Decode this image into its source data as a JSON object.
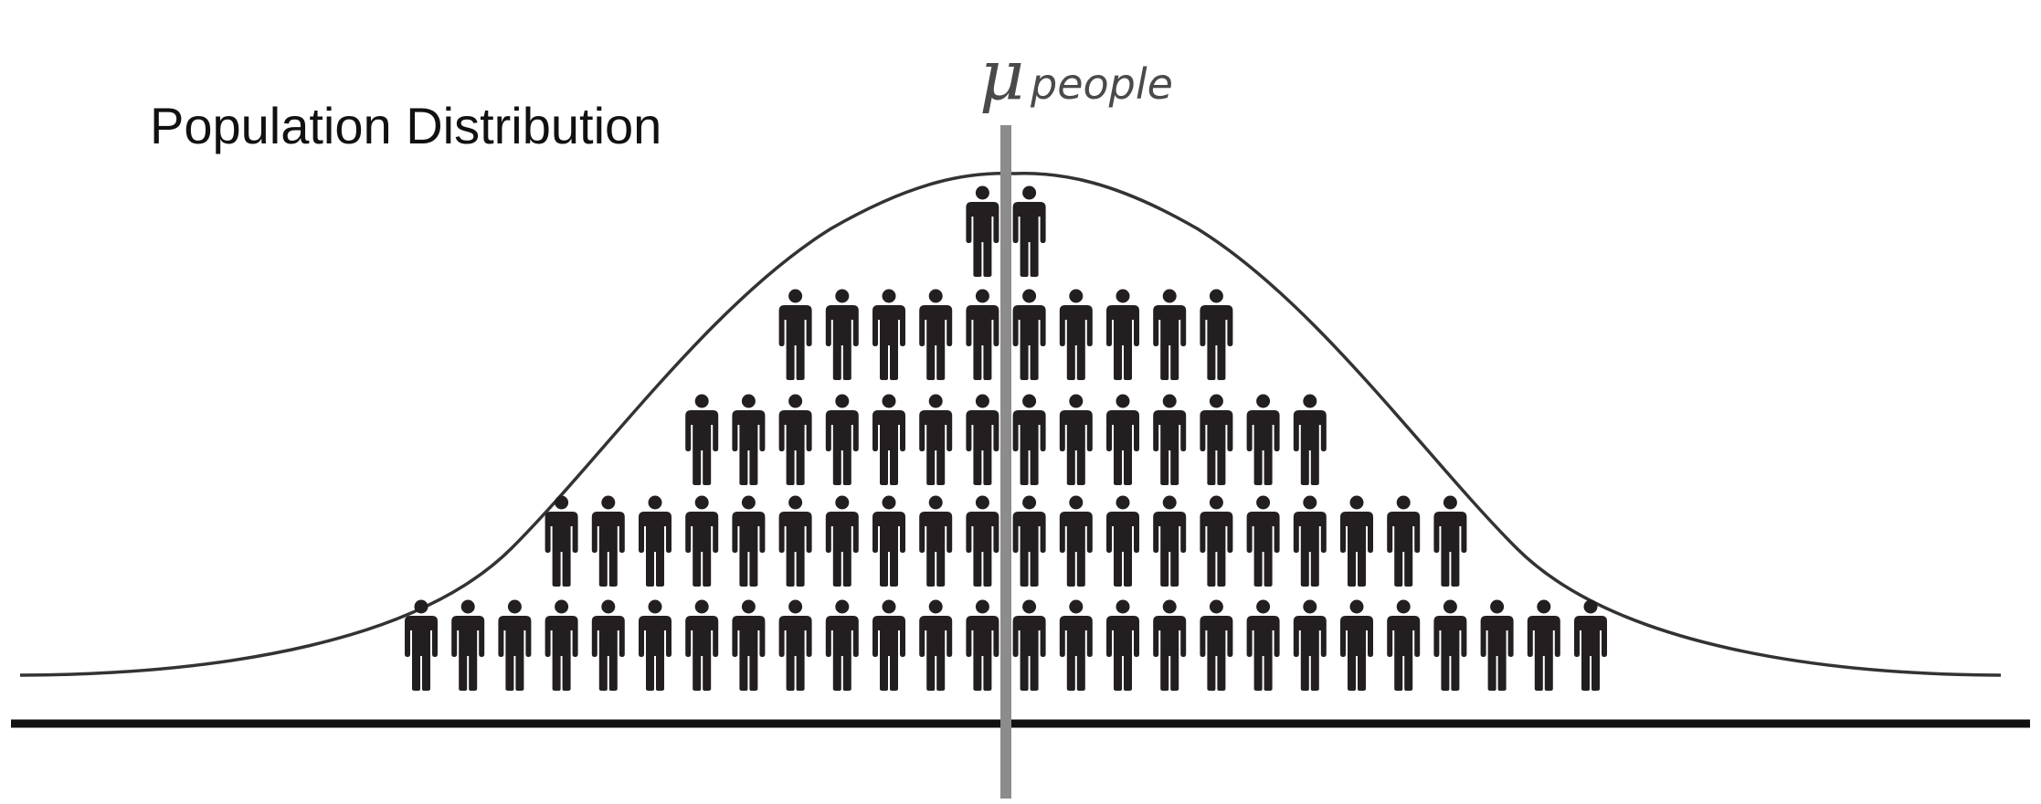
{
  "diagram": {
    "title": "Population Distribution",
    "mean_label": {
      "symbol": "μ",
      "subscript": "people"
    },
    "rows": [
      {
        "count": 2
      },
      {
        "count": 10
      },
      {
        "count": 14
      },
      {
        "count": 20
      },
      {
        "count": 26
      }
    ],
    "icon": "person-icon",
    "colors": {
      "figures": "#231f20",
      "curve": "#333333",
      "mean_line": "#8c8c8c",
      "baseline": "#111111",
      "text": "#111111",
      "mean_label": "#4a4a4a"
    }
  }
}
